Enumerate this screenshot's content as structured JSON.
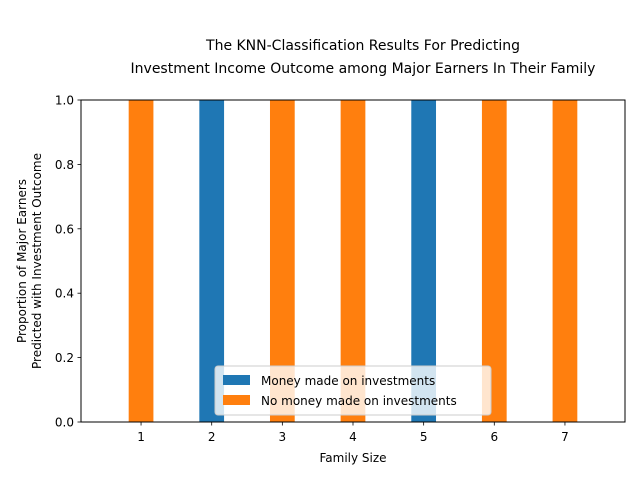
{
  "chart_data": {
    "type": "bar",
    "stacked": true,
    "title_lines": [
      "The KNN-Classification Results For Predicting",
      "Investment Income Outcome among Major Earners In Their Family"
    ],
    "xlabel": "Family Size",
    "ylabel_lines": [
      "Proportion of Major Earners",
      "Predicted with Investment Outcome"
    ],
    "categories": [
      "1",
      "2",
      "3",
      "4",
      "5",
      "6",
      "7"
    ],
    "ylim": [
      0,
      1.0
    ],
    "yticks": [
      "0.0",
      "0.2",
      "0.4",
      "0.6",
      "0.8",
      "1.0"
    ],
    "grid": false,
    "legend_position": "lower-center",
    "series": [
      {
        "name": "Money made on investments",
        "color": "#1f77b4",
        "values": [
          0,
          1,
          0,
          0,
          1,
          0,
          0
        ]
      },
      {
        "name": "No money made on investments",
        "color": "#ff7f0e",
        "values": [
          1,
          0,
          1,
          1,
          0,
          1,
          1
        ]
      }
    ]
  }
}
